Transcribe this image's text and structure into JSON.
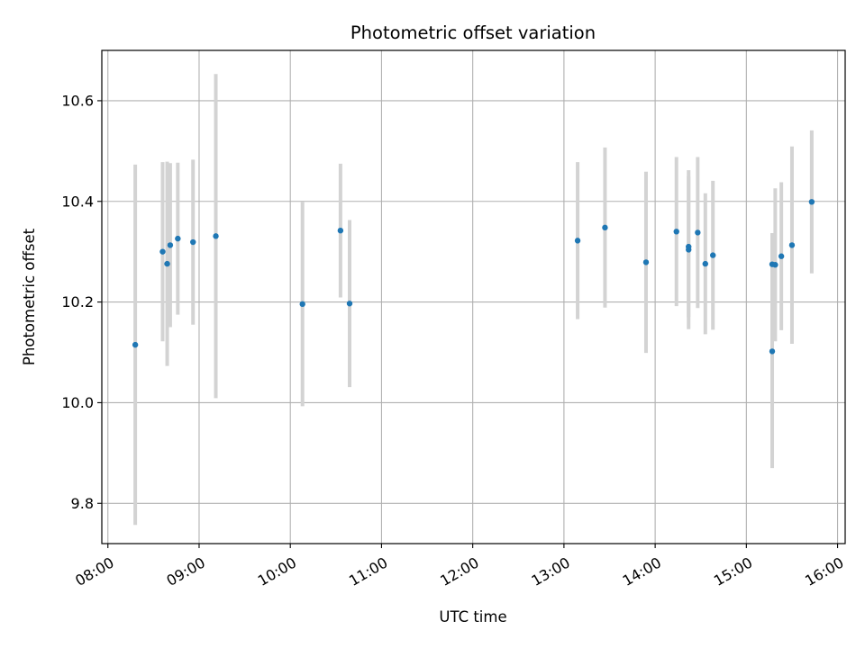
{
  "chart_data": {
    "type": "scatter",
    "title": "Photometric offset variation",
    "xlabel": "UTC time",
    "ylabel": "Photometric offset",
    "x_ticks": [
      "08:00",
      "09:00",
      "10:00",
      "11:00",
      "12:00",
      "13:00",
      "14:00",
      "15:00",
      "16:00"
    ],
    "y_ticks": [
      "9.8",
      "10.0",
      "10.2",
      "10.4",
      "10.6"
    ],
    "y_tick_values": [
      9.8,
      10.0,
      10.2,
      10.4,
      10.6
    ],
    "xlim": [
      "07:56",
      "16:05"
    ],
    "ylim": [
      9.72,
      10.7
    ],
    "grid": true,
    "colors": {
      "point": "#1f77b4",
      "errorbar": "#d3d3d3",
      "grid": "#b0b0b0"
    },
    "points": [
      {
        "x": "08:18",
        "y": 10.115,
        "err": 0.358
      },
      {
        "x": "08:36",
        "y": 10.3,
        "err": 0.178
      },
      {
        "x": "08:39",
        "y": 10.276,
        "err": 0.203
      },
      {
        "x": "08:41",
        "y": 10.313,
        "err": 0.163
      },
      {
        "x": "08:46",
        "y": 10.326,
        "err": 0.151
      },
      {
        "x": "08:56",
        "y": 10.319,
        "err": 0.164
      },
      {
        "x": "09:11",
        "y": 10.331,
        "err": 0.322
      },
      {
        "x": "10:08",
        "y": 10.196,
        "err": 0.203
      },
      {
        "x": "10:33",
        "y": 10.342,
        "err": 0.133
      },
      {
        "x": "10:39",
        "y": 10.197,
        "err": 0.166
      },
      {
        "x": "13:09",
        "y": 10.322,
        "err": 0.156
      },
      {
        "x": "13:27",
        "y": 10.348,
        "err": 0.159
      },
      {
        "x": "13:54",
        "y": 10.279,
        "err": 0.18
      },
      {
        "x": "14:14",
        "y": 10.34,
        "err": 0.148
      },
      {
        "x": "14:22",
        "y": 10.304,
        "err": 0.158
      },
      {
        "x": "14:22",
        "y": 10.31,
        "err": 0.14
      },
      {
        "x": "14:28",
        "y": 10.338,
        "err": 0.15
      },
      {
        "x": "14:33",
        "y": 10.276,
        "err": 0.14
      },
      {
        "x": "14:38",
        "y": 10.293,
        "err": 0.148
      },
      {
        "x": "15:17",
        "y": 10.102,
        "err": 0.232
      },
      {
        "x": "15:17",
        "y": 10.275,
        "err": 0.062
      },
      {
        "x": "15:19",
        "y": 10.274,
        "err": 0.152
      },
      {
        "x": "15:23",
        "y": 10.291,
        "err": 0.147
      },
      {
        "x": "15:30",
        "y": 10.313,
        "err": 0.196
      },
      {
        "x": "15:43",
        "y": 10.399,
        "err": 0.142
      }
    ]
  }
}
